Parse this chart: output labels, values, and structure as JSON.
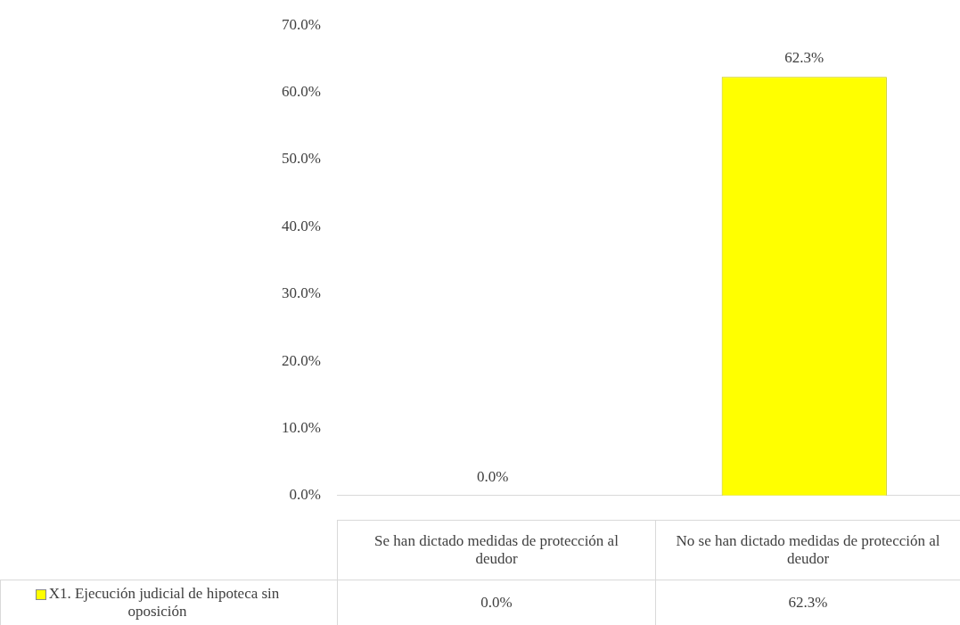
{
  "chart_data": {
    "type": "bar",
    "categories": [
      "Se han dictado medidas de protección al deudor",
      "No se han dictado medidas de protección al deudor"
    ],
    "series": [
      {
        "name": "X1. Ejecución judicial de hipoteca sin oposición",
        "color": "#ffff00",
        "values": [
          0.0,
          62.3
        ],
        "value_labels": [
          "0.0%",
          "62.3%"
        ]
      }
    ],
    "ylim": [
      0,
      70
    ],
    "yticks": [
      {
        "value": 0,
        "label": "0.0%"
      },
      {
        "value": 10,
        "label": "10.0%"
      },
      {
        "value": 20,
        "label": "20.0%"
      },
      {
        "value": 30,
        "label": "30.0%"
      },
      {
        "value": 40,
        "label": "40.0%"
      },
      {
        "value": 50,
        "label": "50.0%"
      },
      {
        "value": 60,
        "label": "60.0%"
      },
      {
        "value": 70,
        "label": "70.0%"
      }
    ],
    "grid": false,
    "data_labels": true
  }
}
